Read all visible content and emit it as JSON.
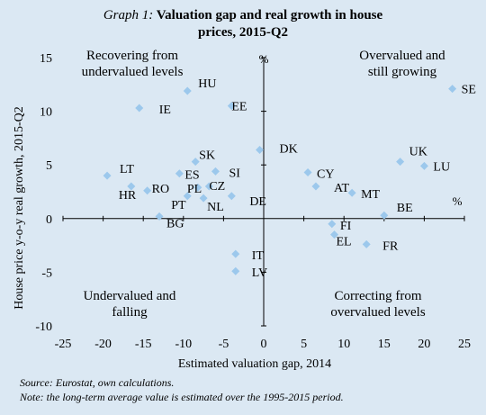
{
  "title": {
    "prefix": "Graph 1:",
    "line1": "Valuation gap and real growth in house",
    "line2": "prices, 2015-Q2"
  },
  "notes": {
    "source": "Source: Eurostat, own calculations.",
    "note": "Note: the long-term average value is estimated over the 1995-2015 period."
  },
  "chart_data": {
    "type": "scatter",
    "xlabel": "Estimated valuation gap, 2014",
    "ylabel": "House price y-o-y real growth, 2015-Q2",
    "x_unit": "%",
    "y_unit": "%",
    "xlim": [
      -25,
      25
    ],
    "ylim": [
      -10,
      15
    ],
    "xticks": [
      -25,
      -20,
      -15,
      -10,
      -5,
      0,
      5,
      10,
      15,
      20,
      25
    ],
    "yticks": [
      -10,
      -5,
      0,
      5,
      10,
      15
    ],
    "marker_color": "#9cc8ec",
    "quadrant_labels": {
      "top_left": [
        "Recovering from",
        "undervalued levels"
      ],
      "top_right": [
        "Overvalued and",
        "still growing"
      ],
      "bottom_left": [
        "Undervalued and",
        "falling"
      ],
      "bottom_right": [
        "Correcting from",
        "overvalued levels"
      ]
    },
    "points": [
      {
        "label": "SE",
        "x": 23.5,
        "y": 12.1
      },
      {
        "label": "HU",
        "x": -9.5,
        "y": 11.9
      },
      {
        "label": "IE",
        "x": -15.5,
        "y": 10.3
      },
      {
        "label": "EE",
        "x": -4.0,
        "y": 10.5
      },
      {
        "label": "DK",
        "x": -0.5,
        "y": 6.4
      },
      {
        "label": "UK",
        "x": 17.0,
        "y": 5.3
      },
      {
        "label": "LU",
        "x": 20.0,
        "y": 4.9
      },
      {
        "label": "CY",
        "x": 5.5,
        "y": 4.3
      },
      {
        "label": "AT",
        "x": 6.5,
        "y": 3.0
      },
      {
        "label": "MT",
        "x": 11.0,
        "y": 2.4
      },
      {
        "label": "BE",
        "x": 15.0,
        "y": 0.3
      },
      {
        "label": "SK",
        "x": -8.5,
        "y": 5.3
      },
      {
        "label": "SI",
        "x": -6.0,
        "y": 4.4
      },
      {
        "label": "ES",
        "x": -10.5,
        "y": 4.2
      },
      {
        "label": "LT",
        "x": -19.5,
        "y": 4.0
      },
      {
        "label": "HR",
        "x": -16.5,
        "y": 3.0
      },
      {
        "label": "RO",
        "x": -14.5,
        "y": 2.6
      },
      {
        "label": "PL",
        "x": -8.2,
        "y": 2.9
      },
      {
        "label": "CZ",
        "x": -6.8,
        "y": 3.0
      },
      {
        "label": "PT",
        "x": -9.5,
        "y": 2.1
      },
      {
        "label": "NL",
        "x": -7.5,
        "y": 1.9
      },
      {
        "label": "DE",
        "x": -4.0,
        "y": 2.1
      },
      {
        "label": "BG",
        "x": -13.0,
        "y": 0.2
      },
      {
        "label": "FI",
        "x": 8.5,
        "y": -0.5
      },
      {
        "label": "EL",
        "x": 8.8,
        "y": -1.5
      },
      {
        "label": "FR",
        "x": 12.8,
        "y": -2.4
      },
      {
        "label": "IT",
        "x": -3.5,
        "y": -3.3
      },
      {
        "label": "LV",
        "x": -3.5,
        "y": -4.9
      }
    ]
  }
}
